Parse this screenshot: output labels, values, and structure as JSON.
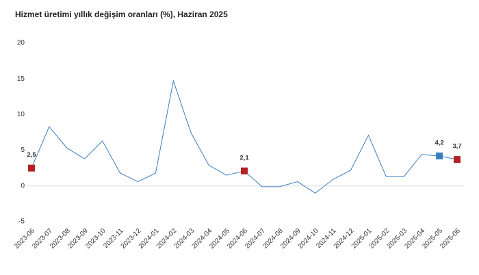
{
  "chart_data": {
    "type": "line",
    "title": "Hizmet üretimi yıllık değişim oranları (%), Haziran 2025",
    "categories": [
      "2023-06",
      "2023-07",
      "2023-08",
      "2023-09",
      "2023-10",
      "2023-11",
      "2023-12",
      "2024-01",
      "2024-02",
      "2024-03",
      "2024-04",
      "2024-05",
      "2024-06",
      "2024-07",
      "2024-08",
      "2024-09",
      "2024-10",
      "2024-11",
      "2024-12",
      "2025-01",
      "2025-02",
      "2025-03",
      "2025-04",
      "2025-05",
      "2025-06"
    ],
    "series": [
      {
        "color": "#3a7dbf",
        "values": [
          2.5,
          8.3,
          5.3,
          3.8,
          6.3,
          1.8,
          0.6,
          1.8,
          14.7,
          7.4,
          2.9,
          1.5,
          2.1,
          -0.1,
          -0.1,
          0.6,
          -1.0,
          0.9,
          2.2,
          7.1,
          1.3,
          1.3,
          4.4,
          4.2,
          3.7
        ],
        "value_labels": [
          "2,5",
          null,
          null,
          null,
          null,
          null,
          null,
          null,
          null,
          null,
          null,
          null,
          "2,1",
          null,
          null,
          null,
          null,
          null,
          null,
          null,
          null,
          null,
          null,
          "4,2",
          "3,7"
        ],
        "marker_colors": [
          "#b22222",
          null,
          null,
          null,
          null,
          null,
          null,
          null,
          null,
          null,
          null,
          null,
          "#b22222",
          null,
          null,
          null,
          null,
          null,
          null,
          null,
          null,
          null,
          null,
          "#3a7dbf",
          "#b22222"
        ]
      }
    ],
    "ylim": [
      -5,
      20
    ],
    "yticks": [
      -5,
      0,
      5,
      10,
      15,
      20
    ],
    "zero_line": true
  }
}
